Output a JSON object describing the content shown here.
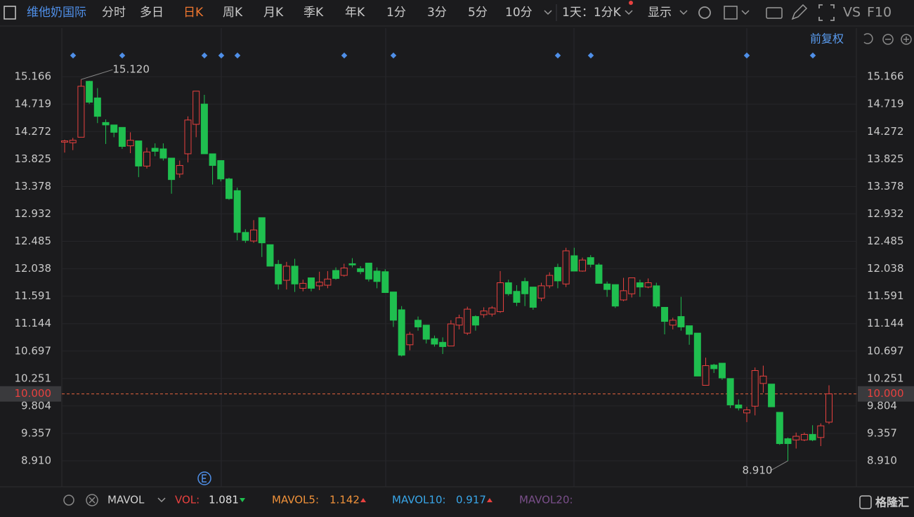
{
  "toolbar": {
    "symbol": "维他奶国际",
    "periods": [
      "分时",
      "多日",
      "日K",
      "周K",
      "月K",
      "季K",
      "年K",
      "1分",
      "3分",
      "5分",
      "10分"
    ],
    "interval": "1天：1分K",
    "display": "显示",
    "vs": "VS",
    "f10": "F10",
    "adjust": "前复权"
  },
  "indicator_bar": {
    "name": "MAVOL",
    "items": [
      {
        "label": "VOL:",
        "value": "1.081",
        "color": "#e8413f"
      },
      {
        "label": "MAVOL5:",
        "value": "1.142",
        "color": "#f0923a"
      },
      {
        "label": "MAVOL10:",
        "value": "0.917",
        "color": "#39a6e8"
      },
      {
        "label": "MAVOL20:",
        "color": "#7a4f8a"
      }
    ]
  },
  "logo": "格隆汇",
  "chart_data": {
    "type": "candlestick",
    "up_color": "#e8413f",
    "down_color": "#1fbf4f",
    "categories": [
      null,
      null,
      null,
      null,
      null,
      null,
      null,
      null,
      null,
      null,
      null,
      null,
      null,
      null,
      null,
      null,
      null,
      null,
      null,
      null,
      null,
      null,
      null,
      null,
      null,
      null,
      null,
      null,
      null,
      null,
      null,
      null,
      null,
      null,
      null,
      null,
      null,
      null,
      null,
      null,
      null,
      null,
      null,
      null,
      null,
      null,
      null,
      null,
      null,
      null,
      null,
      null,
      null,
      null,
      null,
      null,
      null,
      null,
      null,
      null,
      null,
      null,
      null,
      null,
      null,
      null,
      null,
      null,
      null,
      null,
      null,
      null,
      null,
      null,
      null,
      null,
      null,
      null,
      null,
      null,
      null,
      null,
      null,
      null,
      null,
      null,
      null,
      null,
      null,
      null,
      null,
      null,
      null,
      null
    ],
    "open": [
      14.1,
      14.09,
      14.18,
      15.09,
      14.82,
      14.42,
      14.38,
      14.34,
      14.04,
      14.12,
      13.71,
      14.0,
      13.99,
      13.84,
      13.58,
      13.91,
      14.39,
      14.72,
      13.91,
      13.8,
      13.5,
      13.31,
      12.63,
      12.49,
      12.87,
      12.43,
      12.11,
      11.85,
      12.08,
      11.72,
      11.89,
      11.76,
      11.77,
      12.01,
      11.93,
      12.12,
      12.04,
      12.13,
      12.0,
      11.99,
      11.66,
      11.37,
      10.8,
      11.2,
      11.12,
      10.9,
      10.84,
      10.78,
      11.12,
      10.99,
      11.26,
      11.29,
      11.3,
      11.34,
      11.81,
      11.67,
      11.83,
      11.74,
      11.56,
      11.76,
      12.06,
      11.79,
      12.25,
      12.0,
      12.22,
      12.1,
      11.79,
      11.78,
      11.53,
      11.63,
      11.81,
      11.74,
      11.76,
      11.41,
      11.12,
      11.26,
      11.11,
      10.99,
      10.14,
      10.47,
      10.5,
      10.25,
      9.82,
      9.69,
      9.8,
      10.17,
      10.16,
      9.7,
      9.27,
      9.25,
      9.25,
      9.34,
      9.29,
      9.54
    ],
    "high": [
      14.14,
      14.17,
      15.12,
      15.1,
      14.98,
      14.47,
      14.38,
      14.34,
      14.26,
      14.12,
      14.01,
      14.08,
      14.08,
      13.84,
      13.8,
      14.52,
      14.93,
      14.87,
      13.91,
      13.8,
      13.52,
      13.36,
      12.68,
      12.83,
      12.87,
      12.43,
      12.18,
      12.15,
      12.2,
      11.86,
      11.89,
      11.99,
      12.0,
      12.06,
      12.12,
      12.21,
      12.08,
      12.13,
      12.06,
      12.03,
      11.66,
      11.43,
      11.01,
      11.26,
      11.12,
      10.95,
      10.92,
      11.2,
      11.29,
      11.42,
      11.28,
      11.41,
      11.43,
      12.0,
      11.86,
      11.77,
      11.89,
      11.74,
      11.81,
      11.98,
      12.12,
      12.38,
      12.38,
      12.22,
      12.26,
      12.13,
      11.83,
      11.78,
      11.89,
      11.89,
      11.86,
      11.88,
      11.81,
      11.41,
      11.24,
      11.58,
      11.11,
      10.99,
      10.59,
      10.49,
      10.5,
      10.25,
      9.91,
      9.79,
      10.43,
      10.46,
      10.16,
      9.7,
      9.29,
      9.37,
      9.37,
      9.49,
      9.52,
      10.14
    ],
    "low": [
      13.93,
      13.97,
      14.18,
      14.72,
      14.41,
      14.07,
      14.18,
      13.99,
      13.92,
      13.53,
      13.67,
      13.87,
      13.8,
      13.26,
      13.52,
      13.77,
      14.18,
      13.91,
      13.41,
      13.46,
      13.16,
      12.5,
      12.46,
      12.46,
      12.23,
      12.08,
      11.7,
      11.7,
      11.66,
      11.67,
      11.67,
      11.69,
      11.72,
      11.86,
      11.91,
      12.06,
      11.95,
      11.83,
      11.72,
      11.65,
      11.09,
      10.61,
      10.71,
      11.03,
      10.82,
      10.77,
      10.65,
      10.78,
      11.05,
      10.96,
      11.03,
      11.24,
      11.26,
      11.32,
      11.6,
      11.43,
      11.43,
      11.37,
      11.51,
      11.72,
      11.72,
      11.74,
      12.0,
      11.99,
      12.06,
      11.8,
      11.58,
      11.4,
      11.51,
      11.57,
      11.58,
      11.72,
      11.4,
      10.97,
      11.05,
      11.03,
      10.8,
      10.29,
      10.14,
      10.34,
      10.23,
      9.77,
      9.73,
      9.54,
      9.65,
      10.02,
      9.79,
      9.17,
      8.91,
      9.11,
      9.23,
      9.23,
      9.15,
      9.51
    ],
    "close": [
      14.12,
      14.13,
      15.01,
      14.75,
      14.52,
      14.38,
      14.26,
      14.03,
      14.13,
      13.71,
      13.94,
      13.95,
      13.84,
      13.49,
      13.72,
      14.46,
      14.93,
      13.91,
      13.72,
      13.5,
      13.18,
      12.63,
      12.5,
      12.67,
      12.46,
      12.08,
      11.79,
      12.08,
      11.79,
      11.8,
      11.72,
      11.82,
      11.87,
      11.88,
      12.05,
      12.1,
      11.99,
      11.87,
      11.83,
      11.65,
      11.2,
      10.63,
      10.97,
      11.09,
      10.89,
      10.81,
      10.77,
      11.14,
      11.24,
      11.38,
      11.12,
      11.35,
      11.4,
      11.81,
      11.63,
      11.49,
      11.63,
      11.41,
      11.76,
      11.93,
      11.84,
      12.33,
      12.0,
      12.18,
      12.11,
      11.8,
      11.7,
      11.43,
      11.68,
      11.89,
      11.74,
      11.81,
      11.43,
      11.18,
      11.2,
      11.09,
      10.97,
      10.29,
      10.46,
      10.41,
      10.26,
      9.82,
      9.77,
      9.74,
      10.38,
      10.29,
      9.79,
      9.19,
      9.19,
      9.31,
      9.34,
      9.25,
      9.48,
      10.0
    ],
    "ylim": [
      8.487,
      15.957
    ],
    "yticks": [
      15.166,
      14.719,
      14.272,
      13.825,
      13.378,
      12.932,
      12.485,
      12.038,
      11.591,
      11.144,
      10.697,
      10.251,
      9.804,
      9.357,
      {
        "value": 8.91,
        "label": "8.910"
      }
    ],
    "price_line": {
      "value": 10,
      "label": "10.000",
      "color": "#e8643f"
    },
    "annotations": [
      {
        "value": 15.12,
        "label": "15.120"
      },
      {
        "value": 8.91,
        "label": "8.910"
      }
    ]
  }
}
